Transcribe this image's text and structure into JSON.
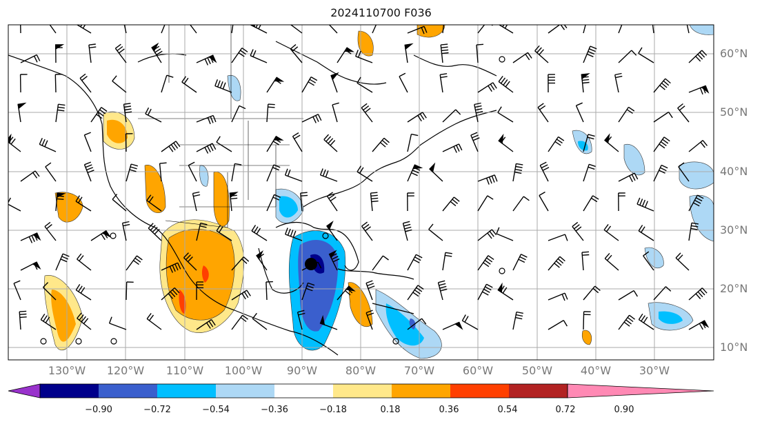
{
  "title": "2024110700 F036",
  "lat_labels": [
    "60°N",
    "50°N",
    "40°N",
    "30°N",
    "20°N",
    "10°N"
  ],
  "lon_labels": [
    "130°W",
    "120°W",
    "110°W",
    "100°W",
    "90°W",
    "80°W",
    "70°W",
    "60°W",
    "50°W",
    "40°W",
    "30°W"
  ],
  "colorbar": {
    "ticks": [
      "−0.90",
      "−0.72",
      "−0.54",
      "−0.36",
      "−0.18",
      "0.18",
      "0.36",
      "0.54",
      "0.72",
      "0.90"
    ],
    "colors": [
      "#9932cc",
      "#00008b",
      "#3a5fcd",
      "#00bfff",
      "#add8f5",
      "#ffffff",
      "#ffe88a",
      "#ffa500",
      "#ff3f00",
      "#b22222",
      "#ff89b4"
    ]
  }
}
